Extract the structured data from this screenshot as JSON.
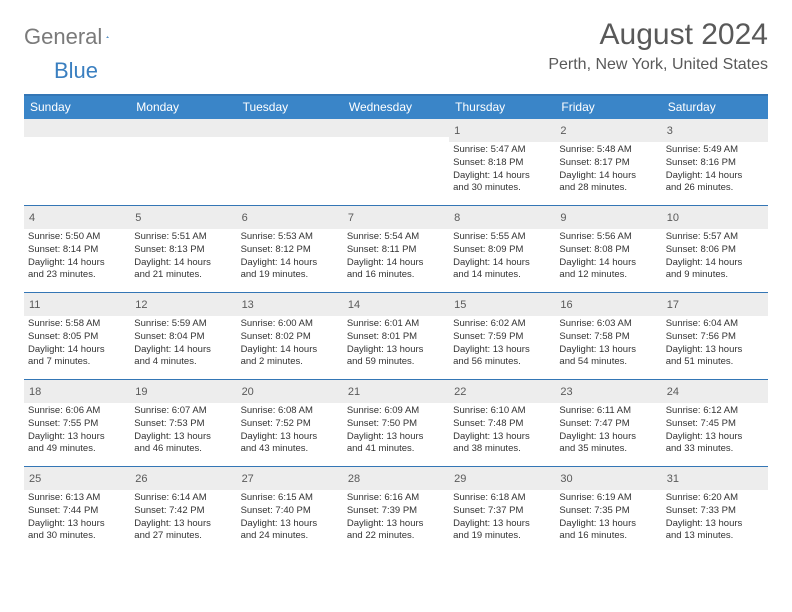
{
  "logo": {
    "text_gray": "General",
    "text_blue": "Blue"
  },
  "title": "August 2024",
  "location": "Perth, New York, United States",
  "colors": {
    "header_blue": "#3a85c8",
    "border_blue": "#3476b5",
    "daynum_bg": "#ededed",
    "text_gray": "#595959"
  },
  "day_headers": [
    "Sunday",
    "Monday",
    "Tuesday",
    "Wednesday",
    "Thursday",
    "Friday",
    "Saturday"
  ],
  "weeks": [
    [
      {
        "n": "",
        "sr": "",
        "ss": "",
        "dl1": "",
        "dl2": ""
      },
      {
        "n": "",
        "sr": "",
        "ss": "",
        "dl1": "",
        "dl2": ""
      },
      {
        "n": "",
        "sr": "",
        "ss": "",
        "dl1": "",
        "dl2": ""
      },
      {
        "n": "",
        "sr": "",
        "ss": "",
        "dl1": "",
        "dl2": ""
      },
      {
        "n": "1",
        "sr": "Sunrise: 5:47 AM",
        "ss": "Sunset: 8:18 PM",
        "dl1": "Daylight: 14 hours",
        "dl2": "and 30 minutes."
      },
      {
        "n": "2",
        "sr": "Sunrise: 5:48 AM",
        "ss": "Sunset: 8:17 PM",
        "dl1": "Daylight: 14 hours",
        "dl2": "and 28 minutes."
      },
      {
        "n": "3",
        "sr": "Sunrise: 5:49 AM",
        "ss": "Sunset: 8:16 PM",
        "dl1": "Daylight: 14 hours",
        "dl2": "and 26 minutes."
      }
    ],
    [
      {
        "n": "4",
        "sr": "Sunrise: 5:50 AM",
        "ss": "Sunset: 8:14 PM",
        "dl1": "Daylight: 14 hours",
        "dl2": "and 23 minutes."
      },
      {
        "n": "5",
        "sr": "Sunrise: 5:51 AM",
        "ss": "Sunset: 8:13 PM",
        "dl1": "Daylight: 14 hours",
        "dl2": "and 21 minutes."
      },
      {
        "n": "6",
        "sr": "Sunrise: 5:53 AM",
        "ss": "Sunset: 8:12 PM",
        "dl1": "Daylight: 14 hours",
        "dl2": "and 19 minutes."
      },
      {
        "n": "7",
        "sr": "Sunrise: 5:54 AM",
        "ss": "Sunset: 8:11 PM",
        "dl1": "Daylight: 14 hours",
        "dl2": "and 16 minutes."
      },
      {
        "n": "8",
        "sr": "Sunrise: 5:55 AM",
        "ss": "Sunset: 8:09 PM",
        "dl1": "Daylight: 14 hours",
        "dl2": "and 14 minutes."
      },
      {
        "n": "9",
        "sr": "Sunrise: 5:56 AM",
        "ss": "Sunset: 8:08 PM",
        "dl1": "Daylight: 14 hours",
        "dl2": "and 12 minutes."
      },
      {
        "n": "10",
        "sr": "Sunrise: 5:57 AM",
        "ss": "Sunset: 8:06 PM",
        "dl1": "Daylight: 14 hours",
        "dl2": "and 9 minutes."
      }
    ],
    [
      {
        "n": "11",
        "sr": "Sunrise: 5:58 AM",
        "ss": "Sunset: 8:05 PM",
        "dl1": "Daylight: 14 hours",
        "dl2": "and 7 minutes."
      },
      {
        "n": "12",
        "sr": "Sunrise: 5:59 AM",
        "ss": "Sunset: 8:04 PM",
        "dl1": "Daylight: 14 hours",
        "dl2": "and 4 minutes."
      },
      {
        "n": "13",
        "sr": "Sunrise: 6:00 AM",
        "ss": "Sunset: 8:02 PM",
        "dl1": "Daylight: 14 hours",
        "dl2": "and 2 minutes."
      },
      {
        "n": "14",
        "sr": "Sunrise: 6:01 AM",
        "ss": "Sunset: 8:01 PM",
        "dl1": "Daylight: 13 hours",
        "dl2": "and 59 minutes."
      },
      {
        "n": "15",
        "sr": "Sunrise: 6:02 AM",
        "ss": "Sunset: 7:59 PM",
        "dl1": "Daylight: 13 hours",
        "dl2": "and 56 minutes."
      },
      {
        "n": "16",
        "sr": "Sunrise: 6:03 AM",
        "ss": "Sunset: 7:58 PM",
        "dl1": "Daylight: 13 hours",
        "dl2": "and 54 minutes."
      },
      {
        "n": "17",
        "sr": "Sunrise: 6:04 AM",
        "ss": "Sunset: 7:56 PM",
        "dl1": "Daylight: 13 hours",
        "dl2": "and 51 minutes."
      }
    ],
    [
      {
        "n": "18",
        "sr": "Sunrise: 6:06 AM",
        "ss": "Sunset: 7:55 PM",
        "dl1": "Daylight: 13 hours",
        "dl2": "and 49 minutes."
      },
      {
        "n": "19",
        "sr": "Sunrise: 6:07 AM",
        "ss": "Sunset: 7:53 PM",
        "dl1": "Daylight: 13 hours",
        "dl2": "and 46 minutes."
      },
      {
        "n": "20",
        "sr": "Sunrise: 6:08 AM",
        "ss": "Sunset: 7:52 PM",
        "dl1": "Daylight: 13 hours",
        "dl2": "and 43 minutes."
      },
      {
        "n": "21",
        "sr": "Sunrise: 6:09 AM",
        "ss": "Sunset: 7:50 PM",
        "dl1": "Daylight: 13 hours",
        "dl2": "and 41 minutes."
      },
      {
        "n": "22",
        "sr": "Sunrise: 6:10 AM",
        "ss": "Sunset: 7:48 PM",
        "dl1": "Daylight: 13 hours",
        "dl2": "and 38 minutes."
      },
      {
        "n": "23",
        "sr": "Sunrise: 6:11 AM",
        "ss": "Sunset: 7:47 PM",
        "dl1": "Daylight: 13 hours",
        "dl2": "and 35 minutes."
      },
      {
        "n": "24",
        "sr": "Sunrise: 6:12 AM",
        "ss": "Sunset: 7:45 PM",
        "dl1": "Daylight: 13 hours",
        "dl2": "and 33 minutes."
      }
    ],
    [
      {
        "n": "25",
        "sr": "Sunrise: 6:13 AM",
        "ss": "Sunset: 7:44 PM",
        "dl1": "Daylight: 13 hours",
        "dl2": "and 30 minutes."
      },
      {
        "n": "26",
        "sr": "Sunrise: 6:14 AM",
        "ss": "Sunset: 7:42 PM",
        "dl1": "Daylight: 13 hours",
        "dl2": "and 27 minutes."
      },
      {
        "n": "27",
        "sr": "Sunrise: 6:15 AM",
        "ss": "Sunset: 7:40 PM",
        "dl1": "Daylight: 13 hours",
        "dl2": "and 24 minutes."
      },
      {
        "n": "28",
        "sr": "Sunrise: 6:16 AM",
        "ss": "Sunset: 7:39 PM",
        "dl1": "Daylight: 13 hours",
        "dl2": "and 22 minutes."
      },
      {
        "n": "29",
        "sr": "Sunrise: 6:18 AM",
        "ss": "Sunset: 7:37 PM",
        "dl1": "Daylight: 13 hours",
        "dl2": "and 19 minutes."
      },
      {
        "n": "30",
        "sr": "Sunrise: 6:19 AM",
        "ss": "Sunset: 7:35 PM",
        "dl1": "Daylight: 13 hours",
        "dl2": "and 16 minutes."
      },
      {
        "n": "31",
        "sr": "Sunrise: 6:20 AM",
        "ss": "Sunset: 7:33 PM",
        "dl1": "Daylight: 13 hours",
        "dl2": "and 13 minutes."
      }
    ]
  ]
}
